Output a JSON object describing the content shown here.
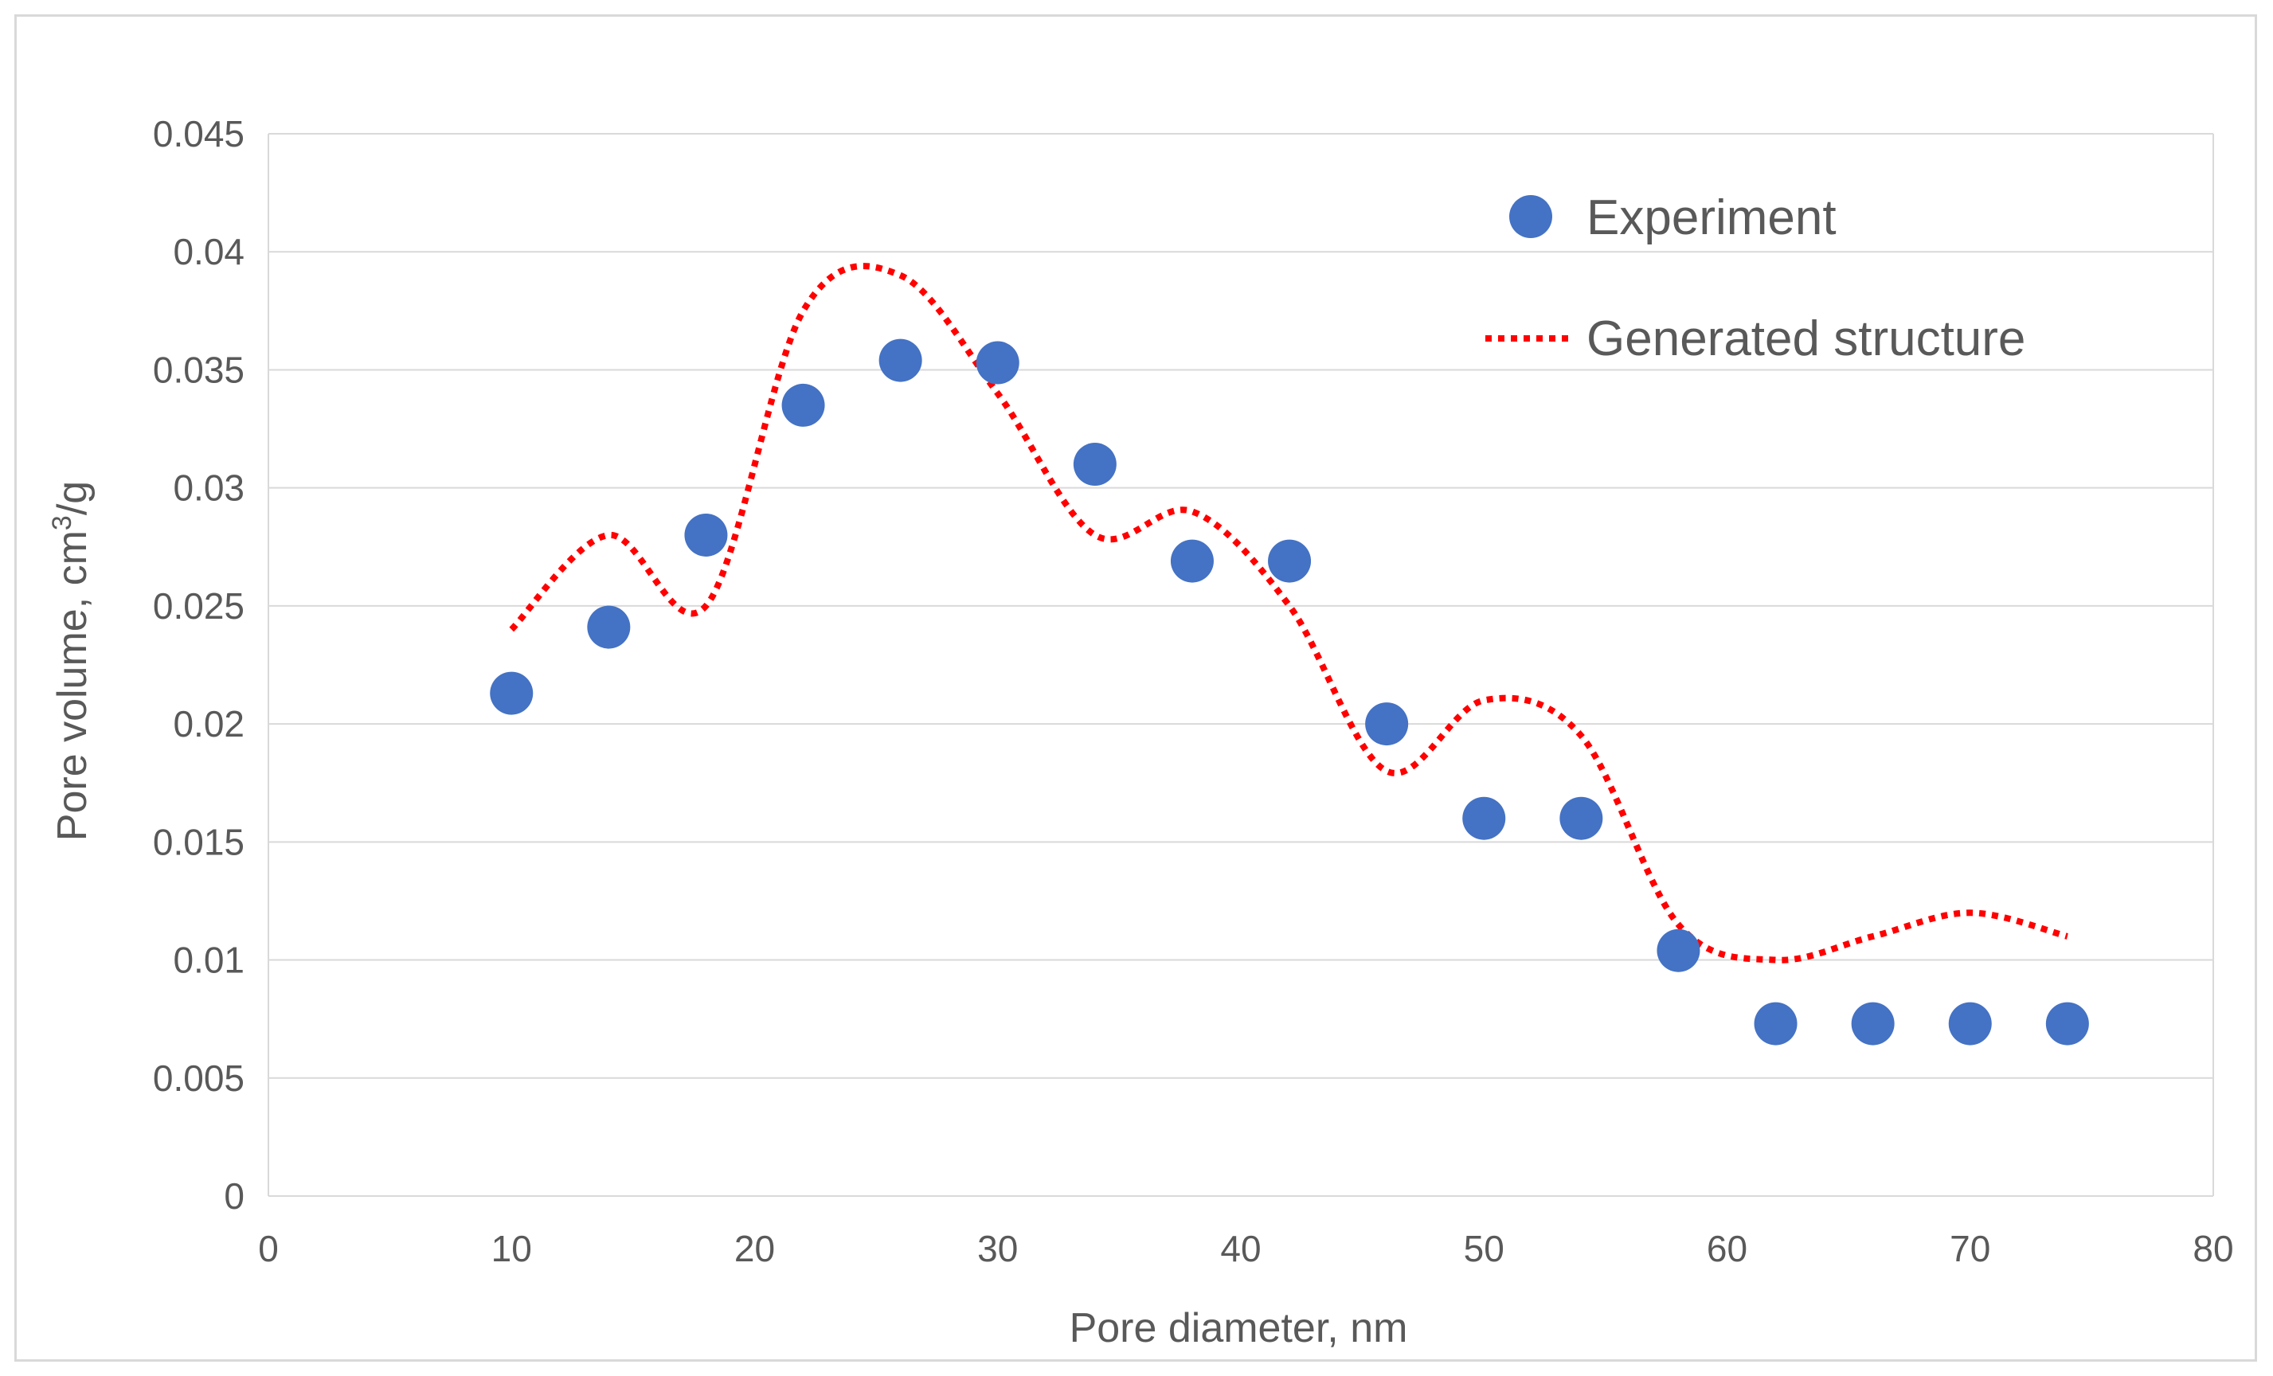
{
  "chart_data": {
    "type": "scatter",
    "title": "",
    "xlabel": "Pore diameter, nm",
    "ylabel_prefix": "Pore volume, cm",
    "ylabel_sup": "3",
    "ylabel_suffix": "/g",
    "xlim": [
      0,
      80
    ],
    "ylim": [
      0,
      0.045
    ],
    "xticks": [
      0,
      10,
      20,
      30,
      40,
      50,
      60,
      70,
      80
    ],
    "xtick_labels": [
      "0",
      "10",
      "20",
      "30",
      "40",
      "50",
      "60",
      "70",
      "80"
    ],
    "yticks": [
      0,
      0.005,
      0.01,
      0.015,
      0.02,
      0.025,
      0.03,
      0.035,
      0.04,
      0.045
    ],
    "ytick_labels": [
      "0",
      "0.005",
      "0.01",
      "0.015",
      "0.02",
      "0.025",
      "0.03",
      "0.035",
      "0.04",
      "0.045"
    ],
    "grid": true,
    "legend_position": "top-right",
    "series": [
      {
        "name": "Experiment",
        "kind": "markers",
        "color": "#4472C4",
        "x": [
          10,
          14,
          18,
          22,
          26,
          30,
          34,
          38,
          42,
          46,
          50,
          54,
          58,
          62,
          66,
          70,
          74
        ],
        "y": [
          0.0213,
          0.0241,
          0.028,
          0.0335,
          0.0354,
          0.0353,
          0.031,
          0.0269,
          0.0269,
          0.02,
          0.016,
          0.016,
          0.0104,
          0.0073,
          0.0073,
          0.0073,
          0.0073
        ]
      },
      {
        "name": "Generated structure",
        "kind": "dotted-line",
        "color": "#FF0000",
        "x": [
          10,
          14,
          18,
          22,
          26,
          30,
          34,
          38,
          42,
          46,
          50,
          54,
          58,
          62,
          66,
          70,
          74
        ],
        "y": [
          0.024,
          0.028,
          0.025,
          0.0375,
          0.039,
          0.034,
          0.028,
          0.029,
          0.025,
          0.018,
          0.021,
          0.0195,
          0.0115,
          0.01,
          0.011,
          0.012,
          0.011
        ]
      }
    ]
  },
  "colors": {
    "grid": "#D9D9D9",
    "axis_text": "#595959",
    "frame": "#D9D9D9"
  }
}
